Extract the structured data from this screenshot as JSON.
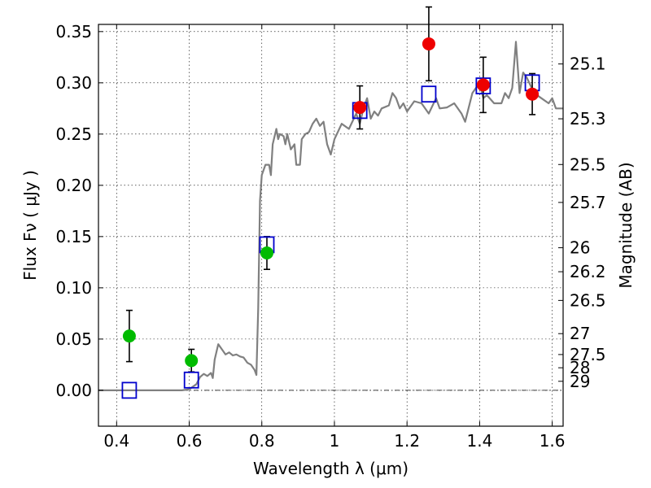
{
  "chart_data": {
    "type": "scatter",
    "xlabel": "Wavelength  λ (μm)",
    "ylabel": "Flux  Fν  ( μJy )",
    "y2label": "Magnitude (AB)",
    "xlim": [
      0.35,
      1.63
    ],
    "ylim": [
      -0.035,
      0.357
    ],
    "x_ticks": [
      0.4,
      0.6,
      0.8,
      1.0,
      1.2,
      1.4,
      1.6
    ],
    "x_tick_labels": [
      "0.4",
      "0.6",
      "0.8",
      "1",
      "1.2",
      "1.4",
      "1.6"
    ],
    "y_ticks": [
      0.0,
      0.05,
      0.1,
      0.15,
      0.2,
      0.25,
      0.3,
      0.35
    ],
    "y_tick_labels": [
      "0.00",
      "0.05",
      "0.10",
      "0.15",
      "0.20",
      "0.25",
      "0.30",
      "0.35"
    ],
    "mag_ticks": [
      {
        "label": "25.1",
        "flux": 0.3184
      },
      {
        "label": "25.3",
        "flux": 0.2649
      },
      {
        "label": "25.5",
        "flux": 0.2203
      },
      {
        "label": "25.7",
        "flux": 0.1833
      },
      {
        "label": "26",
        "flux": 0.1391
      },
      {
        "label": "26.2",
        "flux": 0.1157
      },
      {
        "label": "26.5",
        "flux": 0.0877
      },
      {
        "label": "27",
        "flux": 0.0553
      },
      {
        "label": "27.5",
        "flux": 0.0349
      },
      {
        "label": "28",
        "flux": 0.022
      },
      {
        "label": "29",
        "flux": 0.0088
      }
    ],
    "grid": true,
    "colors": {
      "spectrum": "#808080",
      "model_box": "#0000cc",
      "green": "#00bb00",
      "red": "#ee0000",
      "errorbar": "#000000"
    },
    "spectrum": [
      [
        0.35,
        0.0
      ],
      [
        0.5,
        0.0
      ],
      [
        0.58,
        0.0
      ],
      [
        0.6,
        0.001
      ],
      [
        0.62,
        0.006
      ],
      [
        0.63,
        0.013
      ],
      [
        0.64,
        0.016
      ],
      [
        0.65,
        0.014
      ],
      [
        0.66,
        0.017
      ],
      [
        0.665,
        0.012
      ],
      [
        0.67,
        0.03
      ],
      [
        0.68,
        0.045
      ],
      [
        0.69,
        0.04
      ],
      [
        0.7,
        0.035
      ],
      [
        0.71,
        0.037
      ],
      [
        0.72,
        0.034
      ],
      [
        0.73,
        0.035
      ],
      [
        0.74,
        0.033
      ],
      [
        0.75,
        0.032
      ],
      [
        0.76,
        0.027
      ],
      [
        0.77,
        0.025
      ],
      [
        0.78,
        0.02
      ],
      [
        0.785,
        0.015
      ],
      [
        0.79,
        0.08
      ],
      [
        0.795,
        0.185
      ],
      [
        0.8,
        0.21
      ],
      [
        0.81,
        0.22
      ],
      [
        0.82,
        0.22
      ],
      [
        0.825,
        0.21
      ],
      [
        0.83,
        0.24
      ],
      [
        0.84,
        0.255
      ],
      [
        0.845,
        0.245
      ],
      [
        0.85,
        0.25
      ],
      [
        0.86,
        0.248
      ],
      [
        0.865,
        0.24
      ],
      [
        0.87,
        0.25
      ],
      [
        0.88,
        0.235
      ],
      [
        0.89,
        0.24
      ],
      [
        0.895,
        0.22
      ],
      [
        0.905,
        0.22
      ],
      [
        0.91,
        0.245
      ],
      [
        0.92,
        0.25
      ],
      [
        0.93,
        0.252
      ],
      [
        0.94,
        0.26
      ],
      [
        0.95,
        0.265
      ],
      [
        0.96,
        0.258
      ],
      [
        0.97,
        0.262
      ],
      [
        0.98,
        0.24
      ],
      [
        0.99,
        0.23
      ],
      [
        1.0,
        0.245
      ],
      [
        1.02,
        0.26
      ],
      [
        1.04,
        0.255
      ],
      [
        1.06,
        0.27
      ],
      [
        1.07,
        0.26
      ],
      [
        1.08,
        0.275
      ],
      [
        1.09,
        0.285
      ],
      [
        1.1,
        0.265
      ],
      [
        1.11,
        0.272
      ],
      [
        1.12,
        0.268
      ],
      [
        1.13,
        0.275
      ],
      [
        1.15,
        0.278
      ],
      [
        1.16,
        0.29
      ],
      [
        1.17,
        0.285
      ],
      [
        1.18,
        0.275
      ],
      [
        1.19,
        0.28
      ],
      [
        1.2,
        0.272
      ],
      [
        1.22,
        0.282
      ],
      [
        1.24,
        0.28
      ],
      [
        1.26,
        0.27
      ],
      [
        1.28,
        0.285
      ],
      [
        1.29,
        0.275
      ],
      [
        1.31,
        0.276
      ],
      [
        1.33,
        0.28
      ],
      [
        1.35,
        0.27
      ],
      [
        1.36,
        0.262
      ],
      [
        1.38,
        0.29
      ],
      [
        1.4,
        0.3
      ],
      [
        1.41,
        0.285
      ],
      [
        1.42,
        0.288
      ],
      [
        1.44,
        0.28
      ],
      [
        1.46,
        0.28
      ],
      [
        1.47,
        0.29
      ],
      [
        1.48,
        0.285
      ],
      [
        1.49,
        0.295
      ],
      [
        1.5,
        0.34
      ],
      [
        1.51,
        0.29
      ],
      [
        1.52,
        0.31
      ],
      [
        1.53,
        0.305
      ],
      [
        1.55,
        0.29
      ],
      [
        1.57,
        0.285
      ],
      [
        1.59,
        0.28
      ],
      [
        1.6,
        0.285
      ],
      [
        1.61,
        0.275
      ],
      [
        1.63,
        0.275
      ]
    ],
    "model_boxes": [
      {
        "x": 0.435,
        "y": 0.0
      },
      {
        "x": 0.606,
        "y": 0.01
      },
      {
        "x": 0.814,
        "y": 0.142
      },
      {
        "x": 1.07,
        "y": 0.273
      },
      {
        "x": 1.26,
        "y": 0.289
      },
      {
        "x": 1.41,
        "y": 0.297
      },
      {
        "x": 1.545,
        "y": 0.3
      }
    ],
    "measurements": [
      {
        "x": 0.435,
        "y": 0.053,
        "err": 0.025,
        "color": "green"
      },
      {
        "x": 0.606,
        "y": 0.029,
        "err": 0.011,
        "color": "green"
      },
      {
        "x": 0.814,
        "y": 0.134,
        "err": 0.016,
        "color": "green"
      },
      {
        "x": 1.07,
        "y": 0.276,
        "err": 0.021,
        "color": "red"
      },
      {
        "x": 1.26,
        "y": 0.338,
        "err": 0.036,
        "color": "red"
      },
      {
        "x": 1.41,
        "y": 0.298,
        "err": 0.027,
        "color": "red"
      },
      {
        "x": 1.545,
        "y": 0.289,
        "err": 0.02,
        "color": "red"
      }
    ]
  }
}
